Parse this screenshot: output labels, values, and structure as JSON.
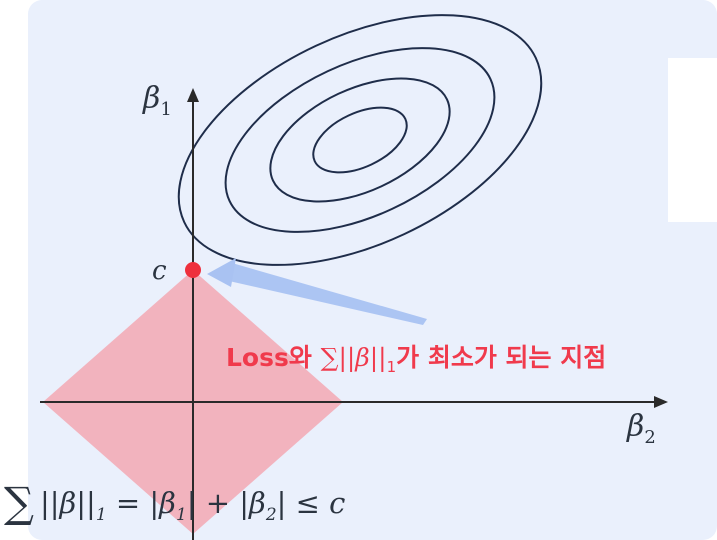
{
  "diagram": {
    "axis_y_label": "β",
    "axis_y_sub": "1",
    "axis_x_label": "β",
    "axis_x_sub": "2",
    "point_label": "c",
    "annotation": {
      "prefix": "Loss와 ",
      "sum": "∑",
      "norm": "||β||",
      "sub": "1",
      "suffix": "가 최소가 되는 지점"
    },
    "constraint_formula": {
      "sum": "∑",
      "lhs": "||β||",
      "lhs_sub": "1",
      "eq": " = |β",
      "b1_sub": "1",
      "plus": "| + |β",
      "b2_sub": "2",
      "tail": "| ≤ c"
    },
    "colors": {
      "background_panel": "#eaf0fc",
      "contour": "#1f2d4a",
      "diamond": "#f2aeb9",
      "point": "#ee2f3c",
      "arrow": "#a9c2f2",
      "annotation": "#f03a4c",
      "axis": "#2a2a2a"
    }
  }
}
